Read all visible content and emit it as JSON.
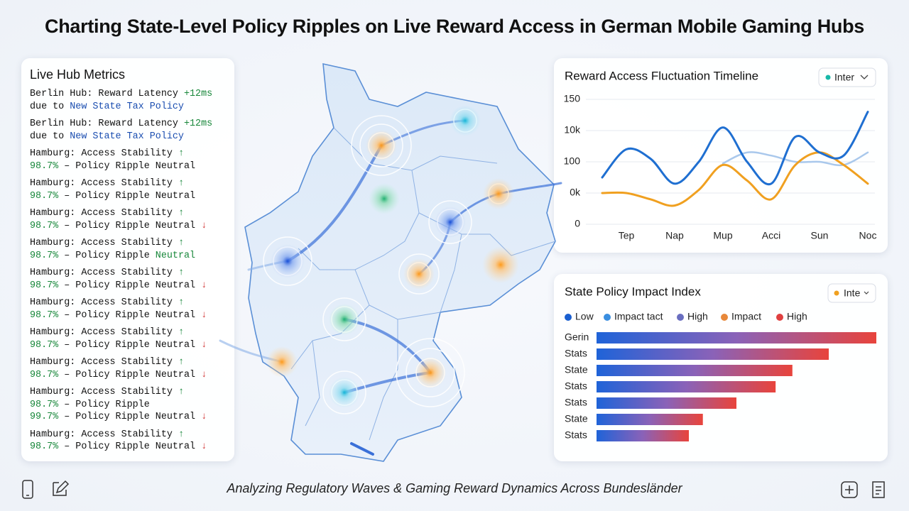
{
  "title": "Charting State-Level Policy Ripples on Live Reward Access in German Mobile Gaming Hubs",
  "subtitle": "Analyzing Regulatory Waves & Gaming Reward Dynamics Across Bundesländer",
  "metrics": {
    "title": "Live Hub Metrics",
    "items": [
      {
        "lines": [
          [
            {
              "text": "Berlin Hub: Reward Latency "
            },
            {
              "text": "+12ms",
              "tone": "green"
            }
          ],
          [
            {
              "text": "due to "
            },
            {
              "text": "New State Tax Policy",
              "tone": "blue"
            }
          ]
        ]
      },
      {
        "lines": [
          [
            {
              "text": "Berlin Hub: Reward Latency "
            },
            {
              "text": "+12ms",
              "tone": "green"
            }
          ],
          [
            {
              "text": "due to "
            },
            {
              "text": "New State Tax Policy",
              "tone": "blue"
            }
          ]
        ]
      },
      {
        "lines": [
          [
            {
              "text": "Hamburg: Access Stability "
            },
            {
              "text": "↑",
              "tone": "green"
            }
          ],
          [
            {
              "text": "98.7%",
              "tone": "green"
            },
            {
              "text": " – Policy Ripple Neutral"
            }
          ]
        ]
      },
      {
        "lines": [
          [
            {
              "text": "Hamburg: Access Stability "
            },
            {
              "text": "↑",
              "tone": "green"
            }
          ],
          [
            {
              "text": "98.7%",
              "tone": "green"
            },
            {
              "text": " – Policy Ripple Neutral"
            }
          ]
        ]
      },
      {
        "lines": [
          [
            {
              "text": "Hamburg: Access Stability "
            },
            {
              "text": "↑",
              "tone": "green"
            }
          ],
          [
            {
              "text": "98.7%",
              "tone": "green"
            },
            {
              "text": " – Policy Ripple Neutral "
            },
            {
              "text": "↓",
              "tone": "red"
            }
          ]
        ]
      },
      {
        "lines": [
          [
            {
              "text": "Hamburg: Access Stability "
            },
            {
              "text": "↑",
              "tone": "green"
            }
          ],
          [
            {
              "text": "98.7%",
              "tone": "green"
            },
            {
              "text": " – Policy Ripple "
            },
            {
              "text": "Neutral",
              "tone": "green"
            }
          ]
        ]
      },
      {
        "lines": [
          [
            {
              "text": "Hamburg: Access Stability "
            },
            {
              "text": "↑",
              "tone": "green"
            }
          ],
          [
            {
              "text": "98.7%",
              "tone": "green"
            },
            {
              "text": " – Policy Ripple Neutral "
            },
            {
              "text": "↓",
              "tone": "red"
            }
          ]
        ]
      },
      {
        "lines": [
          [
            {
              "text": "Hamburg: Access Stability "
            },
            {
              "text": "↑",
              "tone": "green"
            }
          ],
          [
            {
              "text": "98.7%",
              "tone": "green"
            },
            {
              "text": " – Policy Ripple Neutral "
            },
            {
              "text": "↓",
              "tone": "red"
            }
          ]
        ]
      },
      {
        "lines": [
          [
            {
              "text": "Hamburg: Access Stability "
            },
            {
              "text": "↑",
              "tone": "green"
            }
          ],
          [
            {
              "text": "98.7%",
              "tone": "green"
            },
            {
              "text": " – Policy Ripple Neutral "
            },
            {
              "text": "↓",
              "tone": "red"
            }
          ]
        ]
      },
      {
        "lines": [
          [
            {
              "text": "Hamburg: Access Stability "
            },
            {
              "text": "↑",
              "tone": "green"
            }
          ],
          [
            {
              "text": "98.7%",
              "tone": "green"
            },
            {
              "text": " – Policy Ripple Neutral "
            },
            {
              "text": "↓",
              "tone": "red"
            }
          ]
        ]
      },
      {
        "lines": [
          [
            {
              "text": "Hamburg: Access Stability "
            },
            {
              "text": "↑",
              "tone": "green"
            }
          ],
          [
            {
              "text": "98.7%",
              "tone": "green"
            },
            {
              "text": " – Policy Ripple"
            }
          ],
          [
            {
              "text": "99.7%",
              "tone": "green"
            },
            {
              "text": " – Policy Ripple Neutral "
            },
            {
              "text": "↓",
              "tone": "red"
            }
          ]
        ]
      },
      {
        "lines": [
          [
            {
              "text": "Hamburg: Access Stability "
            },
            {
              "text": "↑",
              "tone": "green"
            }
          ],
          [
            {
              "text": "98.7%",
              "tone": "green"
            },
            {
              "text": " – Policy Ripple Neutral "
            },
            {
              "text": "↓",
              "tone": "red"
            }
          ]
        ]
      }
    ]
  },
  "chart_data": [
    {
      "type": "line",
      "title": "Reward Access Fluctuation Timeline",
      "control": "Inter",
      "categories": [
        null,
        "Tep",
        null,
        "Nap",
        null,
        "Mup",
        null,
        "Acci",
        null,
        "Sun",
        null,
        "Noc"
      ],
      "series": [
        {
          "color": "#1f6fd1",
          "values": [
            1.5,
            2.4,
            2.1,
            1.3,
            2.0,
            3.1,
            2.0,
            1.3,
            2.8,
            2.3,
            2.2,
            3.6
          ]
        },
        {
          "color": "#f0a020",
          "values": [
            1.0,
            1.0,
            0.8,
            0.6,
            1.1,
            1.9,
            1.4,
            0.8,
            1.9,
            2.3,
            1.9,
            1.3
          ]
        },
        {
          "color": "#a9c8ec",
          "values": [
            null,
            null,
            null,
            null,
            null,
            1.95,
            2.3,
            2.2,
            2.0,
            2.0,
            1.9,
            2.3
          ]
        }
      ],
      "ylim": [
        0,
        4
      ],
      "yticks": [
        0,
        {
          "value": 1,
          "label": "0k"
        },
        {
          "value": 2,
          "label": "100"
        },
        {
          "value": 3,
          "label": "10k"
        },
        {
          "value": 4,
          "label": "150"
        }
      ],
      "grid": true
    },
    {
      "type": "hbar",
      "title": "State Policy Impact Index",
      "control": "Inte",
      "legend": [
        {
          "label": "Low",
          "color": "#1a5fd0"
        },
        {
          "label": "Impact tact",
          "color": "#3a8ee0"
        },
        {
          "label": "High",
          "color": "#6a6ec0"
        },
        {
          "label": "Impact",
          "color": "#e8883a"
        },
        {
          "label": "High",
          "color": "#e04040"
        }
      ],
      "categories": [
        "Gerin",
        "Stats",
        "State",
        "Stats",
        "Stats",
        "State",
        "Stats"
      ],
      "values": [
        100,
        83,
        70,
        64,
        50,
        38,
        33
      ],
      "xlim": [
        0,
        100
      ],
      "gradient": [
        "#1f63d8",
        "#8a62b8",
        "#e8443c"
      ]
    }
  ]
}
